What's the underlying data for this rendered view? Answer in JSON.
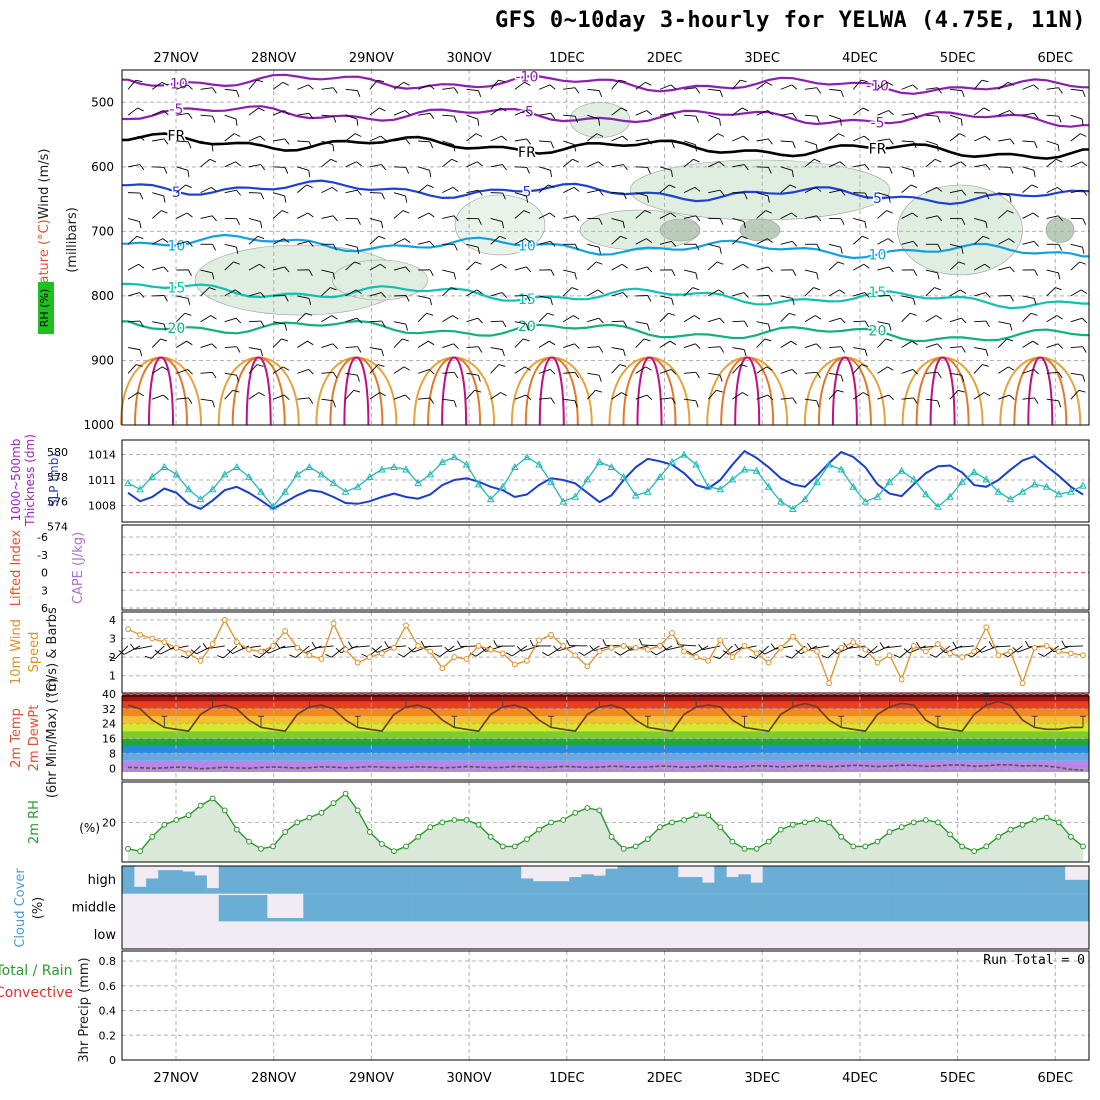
{
  "title": "GFS 0~10day 3-hourly for YELWA (4.75E, 11N)",
  "chart_data": {
    "type": "meteogram",
    "time_labels": [
      "27NOV",
      "28NOV",
      "29NOV",
      "30NOV",
      "1DEC",
      "2DEC",
      "3DEC",
      "4DEC",
      "5DEC",
      "6DEC"
    ],
    "steps": 80,
    "panels": {
      "upper_air": {
        "ylabels": [
          "Temperature (°C)",
          "Wind (m/s)",
          "(millibars)",
          "RH (%)"
        ],
        "yticks": [
          500,
          600,
          700,
          800,
          900,
          1000
        ],
        "isotherms": [
          {
            "label": "-10",
            "level": 465,
            "color": "#8a1fb0"
          },
          {
            "label": "-5",
            "level": 515,
            "color": "#8a1fb0"
          },
          {
            "label": "FR",
            "level": 560,
            "color": "#000000"
          },
          {
            "label": "5",
            "level": 630,
            "color": "#2040d0"
          },
          {
            "label": "10",
            "level": 715,
            "color": "#10a0e0"
          },
          {
            "label": "15",
            "level": 790,
            "color": "#10c0b0"
          },
          {
            "label": "20",
            "level": 845,
            "color": "#10b080"
          }
        ]
      },
      "slp_thickness": {
        "ylabel_left": "1000~500mb Thickness (dm)",
        "ylabel_right": "SLP (mb)",
        "yticks_left": [
          580,
          578,
          576,
          574
        ],
        "yticks_right": [
          1014,
          1011,
          1008
        ],
        "slp": [
          1009.5,
          1008.5,
          1009,
          1010,
          1009.5,
          1008.2,
          1007.6,
          1008.6,
          1009.8,
          1010.2,
          1009.5,
          1008.6,
          1007.6,
          1008.4,
          1009.2,
          1009.8,
          1009.6,
          1009,
          1008.3,
          1008.2,
          1008.5,
          1009,
          1009.4,
          1009,
          1008.8,
          1009.3,
          1010.4,
          1011,
          1011.2,
          1010.8,
          1010.2,
          1009.8,
          1009,
          1009.3,
          1010.4,
          1011.2,
          1011,
          1010.6,
          1009.5,
          1008.4,
          1009.2,
          1011,
          1012.5,
          1013.5,
          1013.2,
          1012.8,
          1011.8,
          1010.4,
          1010,
          1011,
          1012.8,
          1014.4,
          1013.6,
          1012.5,
          1011.2,
          1010.5,
          1010.2,
          1011.5,
          1013,
          1014.3,
          1013.7,
          1012.5,
          1010.5,
          1009.4,
          1009.1,
          1010.5,
          1011.8,
          1012.6,
          1012.7,
          1011.9,
          1010.4,
          1010.2,
          1011,
          1012.2,
          1013.3,
          1013.8,
          1012.6,
          1011.5,
          1010.2,
          1009.3
        ],
        "thickness": [
          577.5,
          577,
          578,
          578.8,
          578.2,
          577,
          576.2,
          577,
          578.2,
          578.8,
          578,
          576.8,
          575.6,
          576.8,
          578.2,
          578.8,
          578.2,
          577.5,
          576.8,
          577.2,
          578,
          578.6,
          578.8,
          578.6,
          577.5,
          578.2,
          579.2,
          579.6,
          579,
          577.4,
          576.2,
          577.2,
          578.8,
          579.6,
          579,
          577.6,
          576,
          576.4,
          577.8,
          579.2,
          578.8,
          578,
          576.5,
          576.8,
          578,
          579.2,
          579.8,
          579,
          577.2,
          577,
          577.8,
          578.6,
          578.5,
          577.2,
          576,
          575.4,
          576.2,
          577.6,
          579,
          578.6,
          577.2,
          576,
          576.4,
          577.6,
          578.5,
          577.8,
          576.6,
          575.6,
          576.4,
          577.6,
          578.4,
          577.8,
          576.8,
          576.2,
          576.8,
          577.4,
          577.2,
          576.6,
          576.8,
          577.3
        ]
      },
      "cape_li": {
        "ylabel_left": "Lifted Index",
        "ylabel_right": "CAPE (J/kg)",
        "yticks": [
          "-6",
          "-3",
          "0",
          "3",
          "6"
        ]
      },
      "wind10m": {
        "ylabel": "10m Wind Speed & Barbs (m/s)",
        "yticks": [
          4,
          3,
          2,
          1
        ],
        "speed": [
          3.5,
          3.2,
          3.0,
          2.8,
          2.5,
          2.2,
          1.8,
          2.7,
          4.0,
          2.8,
          2.4,
          2.3,
          2.6,
          3.4,
          2.5,
          2.1,
          1.9,
          3.8,
          2.4,
          1.7,
          2.0,
          2.2,
          2.5,
          3.7,
          2.6,
          2.3,
          1.4,
          2.0,
          1.9,
          2.6,
          2.4,
          2.2,
          1.6,
          1.8,
          2.9,
          3.2,
          2.6,
          2.1,
          1.5,
          2.3,
          2.5,
          2.6,
          2.5,
          2.4,
          2.6,
          3.3,
          2.3,
          2.0,
          1.8,
          2.9,
          2.0,
          2.6,
          2.2,
          1.7,
          2.5,
          3.1,
          2.4,
          2.3,
          0.6,
          2.5,
          2.8,
          2.4,
          1.7,
          2.1,
          0.8,
          2.6,
          2.3,
          2.7,
          2.2,
          2.0,
          2.3,
          3.6,
          2.1,
          2.3,
          0.6,
          2.5,
          2.6,
          2.3,
          2.2,
          2.1
        ]
      },
      "temperature": {
        "ylabel": "2m Temp 2m DewPt (6hr Min/Max) (°C)",
        "yticks": [
          40,
          32,
          24,
          16,
          8,
          0
        ],
        "temp_max": [
          34,
          32,
          26,
          22,
          21,
          20,
          29,
          33,
          34,
          32,
          26,
          22,
          21,
          20,
          29,
          33,
          34,
          32,
          26,
          22,
          21,
          20,
          29,
          33,
          34,
          32,
          26,
          22,
          21,
          20,
          29,
          33,
          34,
          32,
          26,
          22,
          21,
          20,
          29,
          33,
          34,
          32,
          26,
          22,
          21,
          20,
          29,
          33,
          34,
          33,
          26,
          22,
          21,
          20,
          29,
          33,
          35,
          33,
          26,
          22,
          21,
          20,
          29,
          33,
          35,
          34,
          26,
          22,
          21,
          20,
          29,
          34,
          36,
          34,
          26,
          22,
          21,
          21,
          22,
          22
        ],
        "dewpoint": [
          0.5,
          0.3,
          0,
          0.2,
          0.6,
          0.4,
          -0.2,
          0.1,
          0.6,
          0.2,
          0,
          0.4,
          0.7,
          0.5,
          0.1,
          0.3,
          0.8,
          0.6,
          0.2,
          0.5,
          0.9,
          0.6,
          0.3,
          0.4,
          0.8,
          0.6,
          0.2,
          0.5,
          0.9,
          0.7,
          0.3,
          0.5,
          1.0,
          0.7,
          0.3,
          0.6,
          1.0,
          0.8,
          0.4,
          0.6,
          1.1,
          0.9,
          0.5,
          0.7,
          1.2,
          1.0,
          0.5,
          0.8,
          1.3,
          1.1,
          0.6,
          0.9,
          1.4,
          1.2,
          0.7,
          1.0,
          1.5,
          1.3,
          0.8,
          1.1,
          1.6,
          1.4,
          0.9,
          1.2,
          1.7,
          1.6,
          1.0,
          1.3,
          1.8,
          1.7,
          1.1,
          1.4,
          1.9,
          1.9,
          1.3,
          1.5,
          1.2,
          0.4,
          -0.6,
          -1.0
        ]
      },
      "rh2m": {
        "ylabel": "2m RH (%)",
        "yticks": [
          20
        ],
        "values": [
          9,
          8,
          14,
          19,
          21,
          23,
          27,
          30,
          25,
          17,
          12,
          9,
          10,
          16,
          20,
          22,
          24,
          28,
          32,
          25,
          16,
          11,
          8,
          10,
          14,
          18,
          20,
          21,
          21,
          19,
          14,
          10,
          10,
          13,
          17,
          20,
          21,
          24,
          26,
          25,
          14,
          9,
          10,
          13,
          18,
          20,
          21,
          23,
          23,
          18,
          12,
          9,
          9,
          12,
          17,
          19,
          20,
          21,
          20,
          14,
          10,
          10,
          12,
          16,
          18,
          20,
          21,
          20,
          15,
          10,
          8,
          10,
          14,
          17,
          19,
          21,
          22,
          20,
          14,
          10
        ]
      },
      "cloud_cover": {
        "ylabel": "Cloud Cover (%)",
        "yticks": [
          "high",
          "middle",
          "low"
        ],
        "high": [
          98,
          25,
          55,
          85,
          85,
          80,
          66,
          20,
          98,
          98,
          98,
          98,
          98,
          98,
          98,
          98,
          98,
          98,
          98,
          98,
          98,
          98,
          98,
          98,
          98,
          98,
          98,
          98,
          98,
          98,
          98,
          98,
          98,
          55,
          45,
          45,
          45,
          60,
          70,
          65,
          90,
          98,
          98,
          98,
          98,
          98,
          60,
          60,
          40,
          98,
          60,
          70,
          40,
          98,
          98,
          98,
          98,
          98,
          98,
          98,
          98,
          98,
          98,
          98,
          98,
          98,
          98,
          98,
          98,
          98,
          98,
          98,
          98,
          98,
          98,
          98,
          98,
          98,
          50,
          50
        ],
        "middle": [
          0,
          0,
          0,
          0,
          0,
          0,
          0,
          0,
          95,
          95,
          95,
          95,
          12,
          12,
          12,
          100,
          100,
          100,
          100,
          100,
          100,
          100,
          100,
          100,
          100,
          100,
          100,
          100,
          100,
          100,
          100,
          100,
          100,
          100,
          100,
          100,
          100,
          100,
          100,
          100,
          100,
          100,
          100,
          100,
          100,
          100,
          100,
          100,
          100,
          100,
          100,
          100,
          100,
          100,
          100,
          100,
          100,
          100,
          100,
          100,
          100,
          100,
          100,
          100,
          100,
          100,
          100,
          100,
          100,
          100,
          100,
          100,
          100,
          100,
          100,
          100,
          100,
          100,
          100,
          100
        ],
        "low": [
          0,
          0,
          0,
          0,
          0,
          0,
          0,
          0,
          0,
          0,
          0,
          0,
          0,
          0,
          0,
          0,
          0,
          0,
          0,
          0,
          0,
          0,
          0,
          0,
          0,
          0,
          0,
          0,
          0,
          0,
          0,
          0,
          0,
          0,
          0,
          0,
          0,
          0,
          0,
          0,
          0,
          0,
          0,
          0,
          0,
          0,
          0,
          0,
          0,
          0,
          0,
          0,
          0,
          0,
          0,
          0,
          0,
          0,
          0,
          0,
          0,
          0,
          0,
          0,
          0,
          0,
          0,
          0,
          0,
          0,
          0,
          0,
          0,
          0,
          0,
          0,
          0,
          0,
          0,
          0
        ]
      },
      "precip": {
        "ylabel_left": "Total / Rain Convective",
        "ylabel_right": "3hr Precip (mm)",
        "yticks": [
          "0.8",
          "0.6",
          "0.4",
          "0.2",
          "0"
        ],
        "run_total": "Run Total = 0",
        "values": []
      }
    }
  }
}
